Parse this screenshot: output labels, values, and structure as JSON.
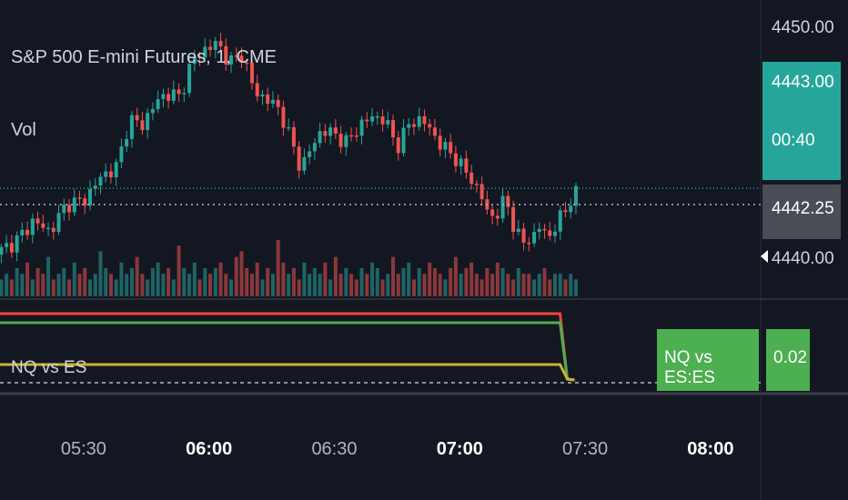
{
  "chart": {
    "symbol_label": "S&P 500 E-mini Futures, 1, CME",
    "volume_label": "Vol",
    "indicator_label": "NQ vs ES",
    "indicator_tag_name": "NQ vs ES:ES",
    "indicator_tag_value": "0.02",
    "last_price_label": "4443.00",
    "countdown_label": "00:40",
    "cursor_price_label": "4442.25"
  },
  "colors": {
    "background": "#131722",
    "up": "#26a69a",
    "down": "#ef5350",
    "last_price_tag": "#26a69a",
    "indicator_tag": "#4caf50",
    "line_red": "#f44336",
    "line_green": "#4caf50",
    "line_yellow": "#c9b22f"
  },
  "chart_data": {
    "type": "candlestick",
    "x_ticks": [
      {
        "label": "05:30",
        "minute": 330,
        "bold": false
      },
      {
        "label": "06:00",
        "minute": 360,
        "bold": true
      },
      {
        "label": "06:30",
        "minute": 390,
        "bold": false
      },
      {
        "label": "07:00",
        "minute": 420,
        "bold": true
      },
      {
        "label": "07:30",
        "minute": 450,
        "bold": false
      },
      {
        "label": "08:00",
        "minute": 480,
        "bold": true
      }
    ],
    "x_range_minutes": [
      310,
      492
    ],
    "y_ticks": [
      "4450.00",
      "4440.00"
    ],
    "y_range": [
      4438.6,
      4451.1
    ],
    "last_price": 4443.0,
    "cursor_price": 4442.25,
    "close_anchors": [
      [
        310,
        4440.1
      ],
      [
        314,
        4440.6
      ],
      [
        318,
        4441.5
      ],
      [
        322,
        4441.0
      ],
      [
        326,
        4442.3
      ],
      [
        330,
        4442.4
      ],
      [
        334,
        4443.5
      ],
      [
        338,
        4444.0
      ],
      [
        341,
        4446.2
      ],
      [
        344,
        4445.9
      ],
      [
        347,
        4446.9
      ],
      [
        350,
        4447.4
      ],
      [
        353,
        4447.2
      ],
      [
        356,
        4448.9
      ],
      [
        359,
        4449.4
      ],
      [
        362,
        4449.7
      ],
      [
        365,
        4448.8
      ],
      [
        368,
        4449.2
      ],
      [
        371,
        4447.4
      ],
      [
        374,
        4447.1
      ],
      [
        377,
        4446.6
      ],
      [
        380,
        4445.0
      ],
      [
        382,
        4443.9
      ],
      [
        384,
        4444.7
      ],
      [
        387,
        4445.7
      ],
      [
        390,
        4445.5
      ],
      [
        393,
        4445.1
      ],
      [
        396,
        4445.9
      ],
      [
        399,
        4446.3
      ],
      [
        402,
        4446.2
      ],
      [
        405,
        4444.9
      ],
      [
        408,
        4446.0
      ],
      [
        411,
        4446.2
      ],
      [
        414,
        4445.4
      ],
      [
        416,
        4444.9
      ],
      [
        419,
        4444.4
      ],
      [
        422,
        4443.6
      ],
      [
        425,
        4442.8
      ],
      [
        427,
        4441.6
      ],
      [
        429,
        4441.9
      ],
      [
        431,
        4442.5
      ],
      [
        433,
        4441.2
      ],
      [
        435,
        4440.5
      ],
      [
        437,
        4440.6
      ],
      [
        439,
        4441.3
      ],
      [
        441,
        4440.6
      ],
      [
        443,
        4441.4
      ],
      [
        445,
        4441.8
      ],
      [
        447,
        4442.7
      ],
      [
        449,
        4443.0
      ]
    ],
    "volume_series": [
      3,
      4,
      3,
      5,
      4,
      6,
      3,
      5,
      4,
      7,
      3,
      4,
      5,
      3,
      6,
      4,
      5,
      3,
      4,
      8,
      5,
      4,
      3,
      6,
      4,
      5,
      7,
      4,
      3,
      5,
      6,
      4,
      5,
      3,
      9,
      5,
      4,
      6,
      3,
      5,
      4,
      5,
      6,
      4,
      3,
      7,
      8,
      5,
      4,
      6,
      3,
      5,
      4,
      10,
      6,
      4,
      5,
      3,
      6,
      4,
      5,
      4,
      6,
      3,
      7,
      4,
      5,
      4,
      3,
      5,
      4,
      6,
      5,
      3,
      4,
      7,
      4,
      5,
      6,
      3,
      5,
      4,
      6,
      5,
      4,
      3,
      5,
      7,
      4,
      5,
      6,
      4,
      3,
      5,
      4,
      6,
      5,
      4,
      3,
      5,
      4,
      4,
      3,
      4,
      5,
      3,
      4,
      4,
      3,
      4
    ],
    "indicator": {
      "series": [
        {
          "color": "red",
          "level": 0.95
        },
        {
          "color": "green",
          "level": 0.82
        },
        {
          "color": "yellow",
          "level": 0.2
        }
      ],
      "end_minute": 444,
      "dropped_value": 0.02
    }
  }
}
